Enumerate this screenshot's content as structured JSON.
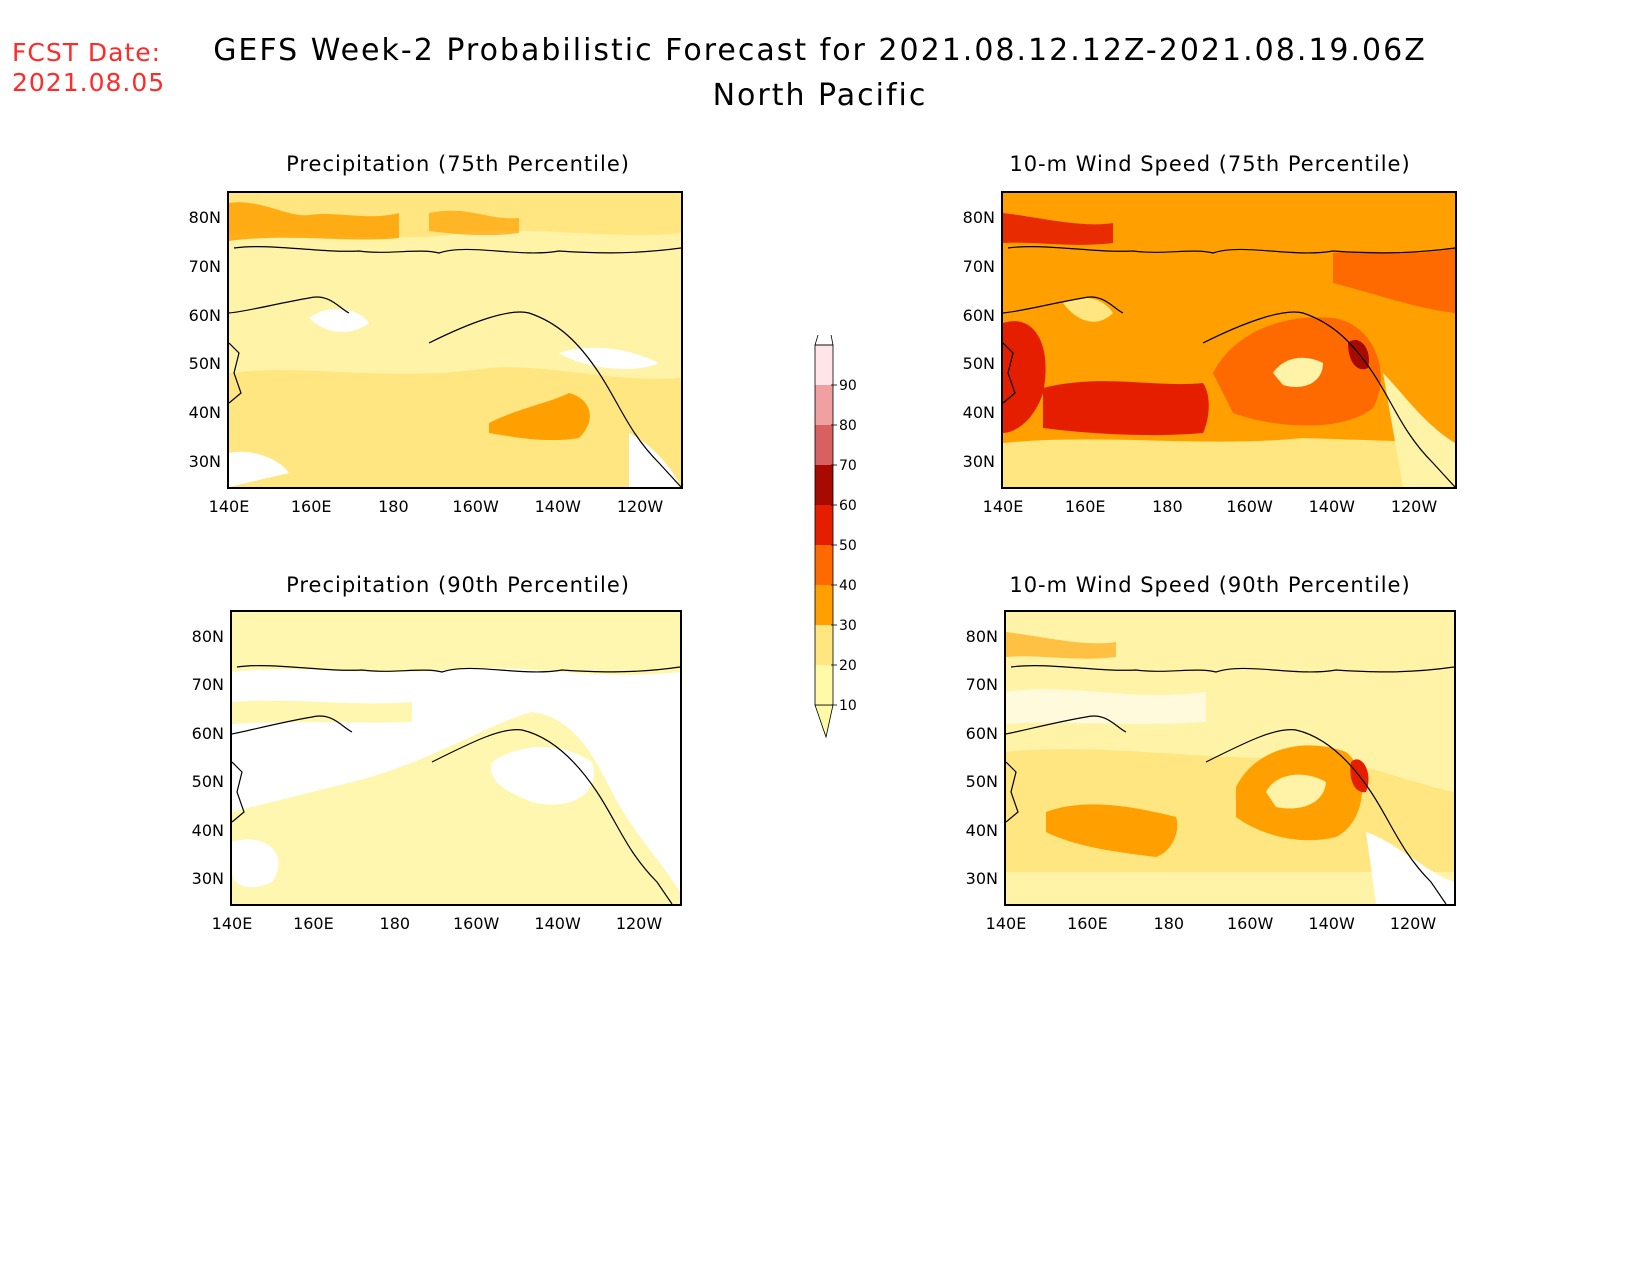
{
  "header": {
    "fcst_label": "FCST Date:",
    "fcst_date": "2021.08.05",
    "title": "GEFS Week-2 Probabilistic Forecast for 2021.08.12.12Z-2021.08.19.06Z",
    "subtitle": "North Pacific"
  },
  "panels": [
    {
      "id": "p75",
      "title": "Precipitation (75th Percentile)"
    },
    {
      "id": "p90",
      "title": "Precipitation (90th Percentile)"
    },
    {
      "id": "w75",
      "title": "10-m Wind Speed (75th Percentile)"
    },
    {
      "id": "w90",
      "title": "10-m Wind Speed (90th Percentile)"
    }
  ],
  "axes": {
    "lat_labels": [
      "80N",
      "70N",
      "60N",
      "50N",
      "40N",
      "30N"
    ],
    "lon_labels": [
      "140E",
      "160E",
      "180",
      "160W",
      "140W",
      "120W"
    ]
  },
  "colorbar": {
    "levels": [
      "10",
      "20",
      "30",
      "40",
      "50",
      "60",
      "70",
      "80",
      "90"
    ],
    "colors": [
      "#fffaa8",
      "#ffe680",
      "#ffa000",
      "#ff6a00",
      "#e61e00",
      "#a60a00",
      "#d96060",
      "#f0a0a0",
      "#ffe4e8"
    ]
  }
}
